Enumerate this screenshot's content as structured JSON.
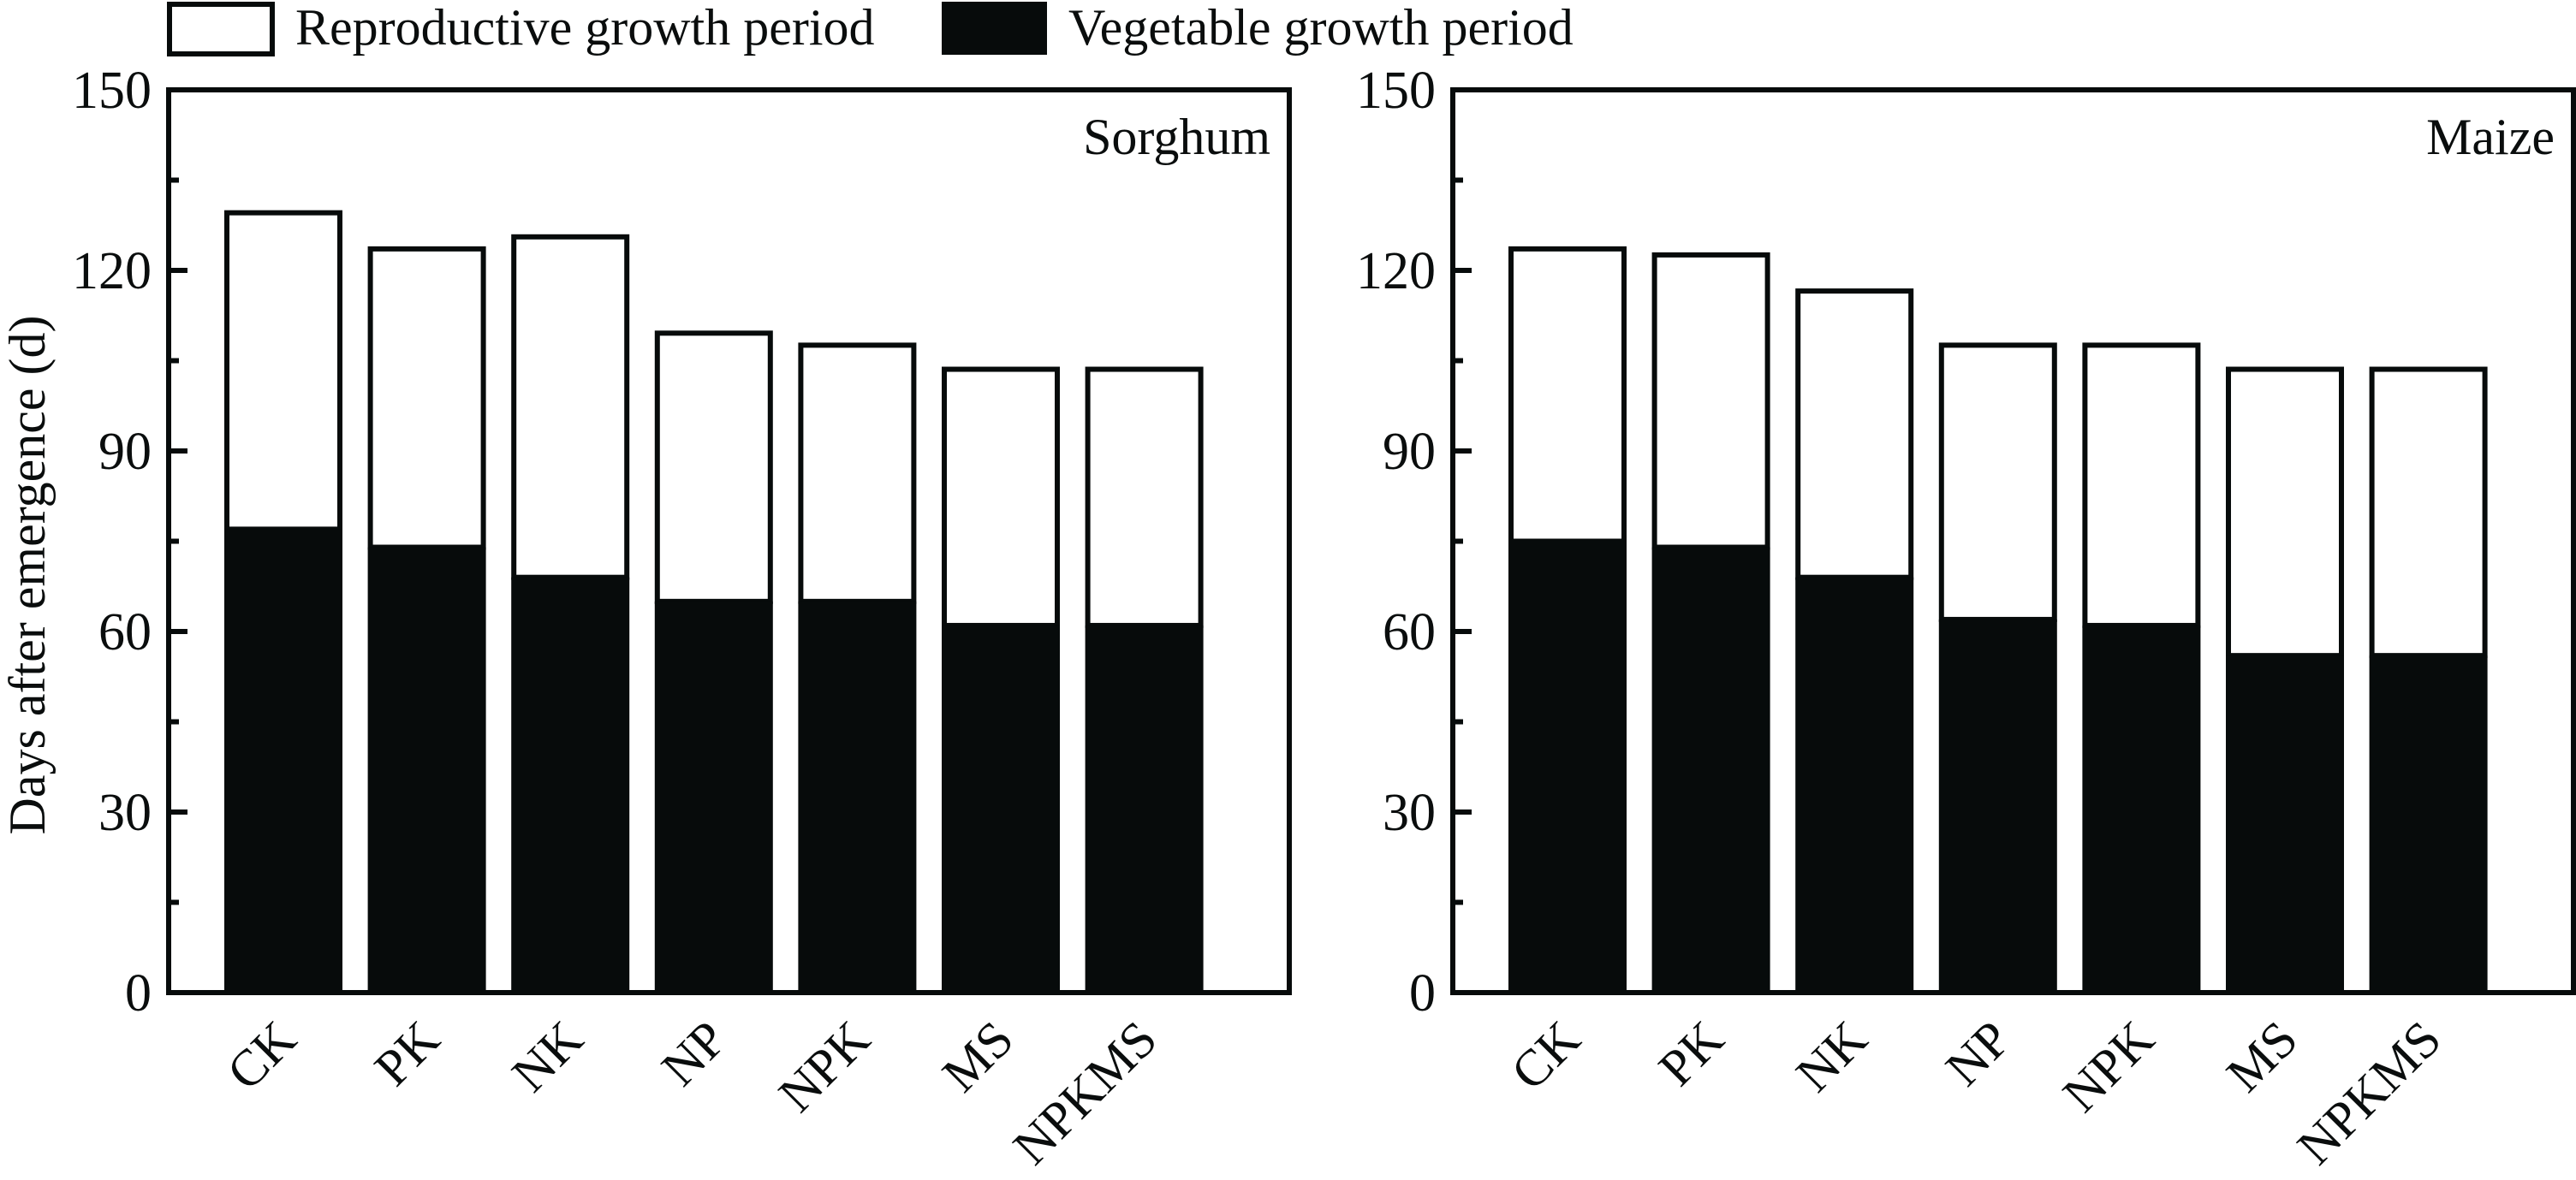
{
  "legend": {
    "items": [
      {
        "label": "Reproductive growth period",
        "fill": "#ffffff"
      },
      {
        "label": "Vegetable growth period",
        "fill": "#070b0b"
      }
    ]
  },
  "colors": {
    "ink": "#070b0b",
    "background": "#ffffff"
  },
  "chart_data": [
    {
      "type": "bar",
      "stacked": true,
      "title": "Sorghum",
      "title_position": "top-right",
      "ylabel": "Days after emergence (d)",
      "xlabel": "",
      "ylim": [
        0,
        150
      ],
      "yticks": [
        0,
        30,
        60,
        90,
        120,
        150
      ],
      "yminor_step": 15,
      "grid": false,
      "legend_position": "top",
      "categories": [
        "CK",
        "PK",
        "NK",
        "NP",
        "NPK",
        "MS",
        "NPKMS"
      ],
      "series": [
        {
          "name": "Vegetable growth period",
          "values": [
            77,
            74,
            69,
            65,
            65,
            61,
            61
          ]
        },
        {
          "name": "Reproductive growth period",
          "values": [
            53,
            50,
            57,
            45,
            43,
            43,
            43
          ]
        }
      ],
      "totals": [
        130,
        124,
        126,
        110,
        108,
        104,
        104
      ]
    },
    {
      "type": "bar",
      "stacked": true,
      "title": "Maize",
      "title_position": "top-right",
      "ylabel": "",
      "xlabel": "",
      "ylim": [
        0,
        150
      ],
      "yticks": [
        0,
        30,
        60,
        90,
        120,
        150
      ],
      "yminor_step": 15,
      "grid": false,
      "legend_position": "top",
      "categories": [
        "CK",
        "PK",
        "NK",
        "NP",
        "NPK",
        "MS",
        "NPKMS"
      ],
      "series": [
        {
          "name": "Vegetable growth period",
          "values": [
            75,
            74,
            69,
            62,
            61,
            56,
            56
          ]
        },
        {
          "name": "Reproductive growth period",
          "values": [
            49,
            49,
            48,
            46,
            47,
            48,
            48
          ]
        }
      ],
      "totals": [
        124,
        123,
        117,
        108,
        108,
        104,
        104
      ]
    }
  ]
}
